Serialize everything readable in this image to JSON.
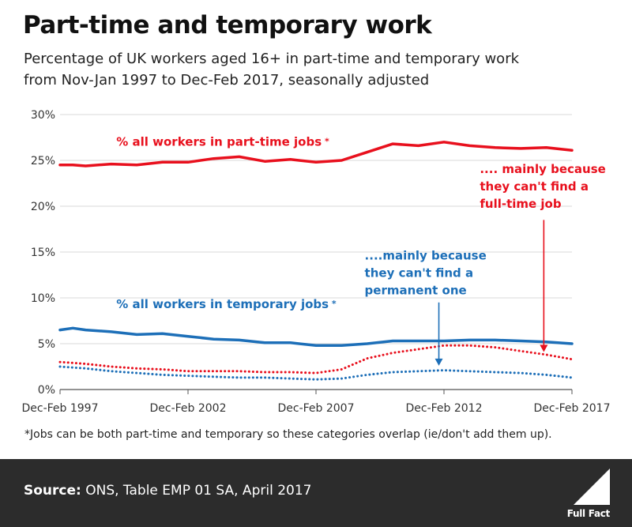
{
  "title": "Part-time and temporary work",
  "subtitle_line1": "Percentage of UK workers aged 16+ in part-time and temporary work",
  "subtitle_line2": "from Nov-Jan 1997 to Dec-Feb 2017, seasonally adjusted",
  "footnote": "*Jobs can be both part-time and temporary so these categories overlap (ie/don't add them up).",
  "source_label": "Source:",
  "source_text": " ONS, Table EMP 01 SA, April 2017",
  "logo_text": "Full Fact",
  "colors": {
    "part_time": "#e8101d",
    "temporary": "#1d6fb8",
    "grid": "#d9d9d9",
    "footer": "#2c2c2c"
  },
  "chart_data": {
    "type": "line",
    "ylim": [
      0,
      30
    ],
    "xlim": [
      1997,
      2017
    ],
    "y_ticks": [
      0,
      5,
      10,
      15,
      20,
      25,
      30
    ],
    "y_tick_labels": [
      "0%",
      "5%",
      "10%",
      "15%",
      "20%",
      "25%",
      "30%"
    ],
    "x_ticks": [
      1997,
      2002,
      2007,
      2012,
      2017
    ],
    "x_tick_labels": [
      "Dec-Feb 1997",
      "Dec-Feb 2002",
      "Dec-Feb 2007",
      "Dec-Feb 2012",
      "Dec-Feb 2017"
    ],
    "grid": "horizontal",
    "series": [
      {
        "name": "% all workers in part-time jobs*",
        "color": "#e8101d",
        "style": "solid",
        "x": [
          1997,
          1997.5,
          1998,
          1999,
          2000,
          2001,
          2002,
          2003,
          2004,
          2005,
          2006,
          2007,
          2008,
          2009,
          2010,
          2011,
          2012,
          2013,
          2014,
          2015,
          2016,
          2017
        ],
        "values": [
          24.5,
          24.5,
          24.4,
          24.6,
          24.5,
          24.8,
          24.8,
          25.2,
          25.4,
          24.9,
          25.1,
          24.8,
          25.0,
          25.9,
          26.8,
          26.6,
          27.0,
          26.6,
          26.4,
          26.3,
          26.4,
          26.1
        ]
      },
      {
        "name": "% all workers in temporary jobs*",
        "color": "#1d6fb8",
        "style": "solid",
        "x": [
          1997,
          1997.5,
          1998,
          1999,
          2000,
          2001,
          2002,
          2003,
          2004,
          2005,
          2006,
          2007,
          2008,
          2009,
          2010,
          2011,
          2012,
          2013,
          2014,
          2015,
          2016,
          2017
        ],
        "values": [
          6.5,
          6.7,
          6.5,
          6.3,
          6.0,
          6.1,
          5.8,
          5.5,
          5.4,
          5.1,
          5.1,
          4.8,
          4.8,
          5.0,
          5.3,
          5.3,
          5.3,
          5.4,
          5.4,
          5.3,
          5.2,
          5.0
        ]
      },
      {
        "name": "part-time: can't find a full-time job",
        "color": "#e8101d",
        "style": "dotted",
        "x": [
          1997,
          1998,
          1999,
          2000,
          2001,
          2002,
          2003,
          2004,
          2005,
          2006,
          2007,
          2008,
          2009,
          2010,
          2011,
          2012,
          2013,
          2014,
          2015,
          2016,
          2017
        ],
        "values": [
          3.0,
          2.8,
          2.5,
          2.3,
          2.2,
          2.0,
          2.0,
          2.0,
          1.9,
          1.9,
          1.8,
          2.2,
          3.4,
          4.0,
          4.4,
          4.8,
          4.8,
          4.6,
          4.2,
          3.8,
          3.3
        ]
      },
      {
        "name": "temporary: can't find a permanent one",
        "color": "#1d6fb8",
        "style": "dotted",
        "x": [
          1997,
          1998,
          1999,
          2000,
          2001,
          2002,
          2003,
          2004,
          2005,
          2006,
          2007,
          2008,
          2009,
          2010,
          2011,
          2012,
          2013,
          2014,
          2015,
          2016,
          2017
        ],
        "values": [
          2.5,
          2.3,
          2.0,
          1.8,
          1.6,
          1.5,
          1.4,
          1.3,
          1.3,
          1.2,
          1.1,
          1.2,
          1.6,
          1.9,
          2.0,
          2.1,
          2.0,
          1.9,
          1.8,
          1.6,
          1.3
        ]
      }
    ],
    "annotations": [
      {
        "text": "% all workers in part-time jobs",
        "asterisk": "*",
        "color": "#e8101d",
        "x": 1999.2,
        "y": 26.6
      },
      {
        "text": "% all workers in temporary jobs",
        "asterisk": "*",
        "color": "#1d6fb8",
        "x": 1999.2,
        "y": 8.9
      },
      {
        "lines": [
          ".... mainly because",
          "they can't find a",
          "full-time job"
        ],
        "color": "#e8101d",
        "x": 2013.4,
        "y": 23.6,
        "arrow_x": 2015.9,
        "arrow_from_y": 18.5,
        "arrow_to_y": 4.1
      },
      {
        "lines": [
          "....mainly because",
          "they can't find a",
          "permanent one"
        ],
        "color": "#1d6fb8",
        "x": 2008.9,
        "y": 14.2,
        "arrow_x": 2011.8,
        "arrow_from_y": 9.5,
        "arrow_to_y": 2.6
      }
    ]
  }
}
